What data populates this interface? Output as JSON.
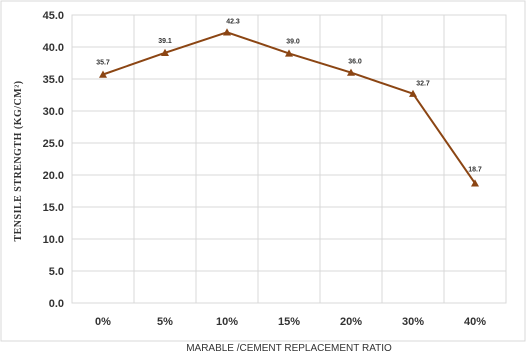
{
  "chart_data": {
    "type": "line",
    "categories": [
      "0%",
      "5%",
      "10%",
      "15%",
      "20%",
      "30%",
      "40%"
    ],
    "series": [
      {
        "values": [
          35.7,
          39.1,
          42.3,
          39.0,
          36.0,
          32.7,
          18.7
        ]
      }
    ],
    "data_labels": [
      "35.7",
      "39.1",
      "42.3",
      "39.0",
      "36.0",
      "32.7",
      "18.7"
    ],
    "y_ticks": [
      "0.0",
      "5.0",
      "10.0",
      "15.0",
      "20.0",
      "25.0",
      "30.0",
      "35.0",
      "40.0",
      "45.0"
    ],
    "xlabel": "MARABLE /CEMENT REPLACEMENT RATIO",
    "ylabel": "TENSILE STRENGTH (KG/CM²)",
    "ylim": [
      0,
      45
    ],
    "grid": true,
    "line_color": "#8B4513",
    "marker": "triangle"
  }
}
